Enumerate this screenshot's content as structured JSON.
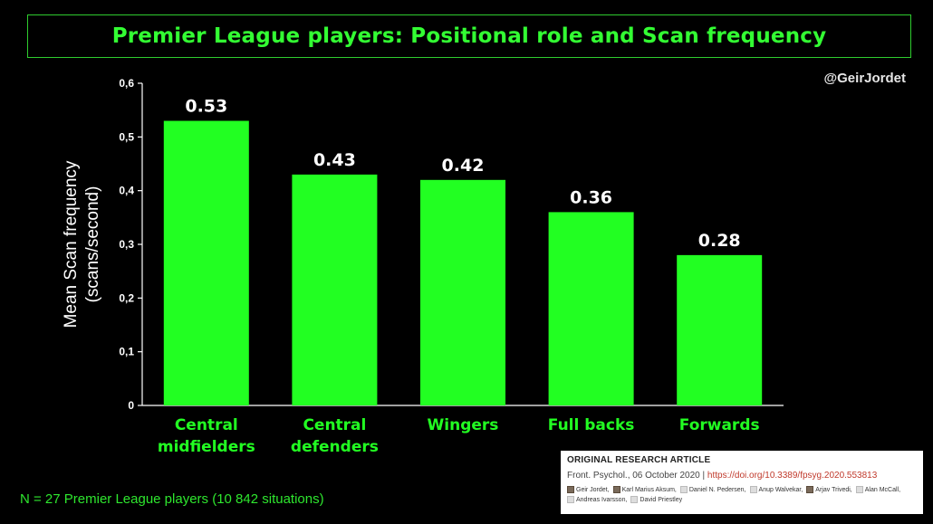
{
  "title": "Premier League players: Positional role and Scan frequency",
  "handle": "@GeirJordet",
  "footnote": "N = 27 Premier League players (10 842 situations)",
  "colors": {
    "bar": "#22ff22",
    "title": "#33ff33",
    "axis": "#ffffff",
    "background": "#000000"
  },
  "chart_data": {
    "type": "bar",
    "categories": [
      [
        "Central",
        "midfielders"
      ],
      [
        "Central",
        "defenders"
      ],
      [
        "Wingers"
      ],
      [
        "Full backs"
      ],
      [
        "Forwards"
      ]
    ],
    "values": [
      0.53,
      0.43,
      0.42,
      0.36,
      0.28
    ],
    "value_labels": [
      "0.53",
      "0.43",
      "0.42",
      "0.36",
      "0.28"
    ],
    "ylabel": [
      "Mean Scan frequency",
      "(scans/second)"
    ],
    "xlabel": "",
    "ylim": [
      0,
      0.6
    ],
    "yticks": [
      0,
      0.1,
      0.2,
      0.3,
      0.4,
      0.5,
      0.6
    ],
    "ytick_labels": [
      "0",
      "0,1",
      "0,2",
      "0,3",
      "0,4",
      "0,5",
      "0,6"
    ],
    "grid": false
  },
  "article": {
    "heading": "ORIGINAL RESEARCH ARTICLE",
    "journal": "Front. Psychol., 06 October 2020 | ",
    "doi": "https://doi.org/10.3389/fpsyg.2020.553813",
    "authors": [
      {
        "name": "Geir Jordet",
        "photo": true
      },
      {
        "name": "Karl Marius Aksum",
        "photo": true
      },
      {
        "name": "Daniel N. Pedersen",
        "photo": false
      },
      {
        "name": "Anup Walvekar",
        "photo": false
      },
      {
        "name": "Arjav Trivedi",
        "photo": true
      },
      {
        "name": "Alan McCall",
        "photo": false
      },
      {
        "name": "Andreas Ivarsson",
        "photo": false
      },
      {
        "name": "David Priestley",
        "photo": false
      }
    ]
  }
}
